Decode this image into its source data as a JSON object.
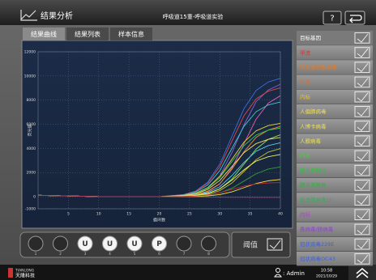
{
  "header": {
    "title": "结果分析",
    "experiment": "呼吸道15重-呼吸道实验",
    "help": "?"
  },
  "tabs": [
    "结果曲线",
    "结果列表",
    "样本信息"
  ],
  "chart_data": {
    "type": "line",
    "ylabel": "荧光值",
    "xlabel": "循环数",
    "x": [
      0,
      10,
      20,
      24,
      26,
      28,
      30,
      32,
      34,
      36,
      38,
      40
    ],
    "xlim": [
      0,
      40
    ],
    "xticks": [
      5,
      10,
      15,
      20,
      25,
      30,
      35,
      40
    ],
    "ylim": [
      -1000,
      12000
    ],
    "yticks": [
      -1000,
      0,
      2000,
      4000,
      6000,
      8000,
      10000,
      12000
    ],
    "grid": true,
    "series": [
      {
        "color": "#3a6fe0",
        "values": [
          120,
          10,
          0,
          180,
          470,
          1200,
          2700,
          5000,
          7300,
          8800,
          9500,
          9800
        ]
      },
      {
        "color": "#8a5fd8",
        "values": [
          120,
          10,
          0,
          106,
          288,
          730,
          1728,
          3648,
          5952,
          7872,
          8832,
          9312
        ]
      },
      {
        "color": "#e04848",
        "values": [
          120,
          10,
          0,
          166,
          432,
          1104,
          2484,
          4600,
          6716,
          8096,
          8740,
          9016
        ]
      },
      {
        "color": "#e060c0",
        "values": [
          120,
          10,
          0,
          62,
          158,
          414,
          1056,
          2376,
          4400,
          6424,
          7744,
          8360
        ]
      },
      {
        "color": "#40c8c8",
        "values": [
          120,
          10,
          0,
          144,
          376,
          960,
          2160,
          4000,
          5840,
          7040,
          7600,
          7840
        ]
      },
      {
        "color": "#e8d040",
        "values": [
          120,
          10,
          0,
          112,
          291,
          744,
          1674,
          3100,
          4526,
          5456,
          5890,
          6076
        ]
      },
      {
        "color": "#e89030",
        "values": [
          120,
          10,
          0,
          66,
          180,
          456,
          1080,
          2280,
          3720,
          4920,
          5520,
          5820
        ]
      },
      {
        "color": "#40c050",
        "values": [
          120,
          10,
          0,
          104,
          273,
          696,
          1566,
          2900,
          4234,
          5104,
          5510,
          5684
        ]
      },
      {
        "color": "#90e060",
        "values": [
          120,
          10,
          0,
          38,
          97,
          254,
          648,
          1458,
          2700,
          3942,
          4752,
          5130
        ]
      },
      {
        "color": "#f0e070",
        "values": [
          120,
          10,
          0,
          90,
          235,
          600,
          1350,
          2500,
          3650,
          4400,
          4750,
          4900
        ]
      },
      {
        "color": "#50d0f0",
        "values": [
          120,
          10,
          0,
          51,
          138,
          350,
          828,
          1748,
          2852,
          3772,
          4232,
          4462
        ]
      },
      {
        "color": "#c0c040",
        "values": [
          120,
          10,
          0,
          29,
          76,
          197,
          504,
          1134,
          2100,
          3066,
          3696,
          3990
        ]
      },
      {
        "color": "#f0f060",
        "values": [
          120,
          10,
          0,
          40,
          108,
          274,
          648,
          1368,
          2232,
          2952,
          3312,
          3492
        ]
      },
      {
        "color": "#30a040",
        "values": [
          120,
          10,
          0,
          18,
          47,
          122,
          312,
          702,
          1300,
          1898,
          2288,
          2470
        ]
      },
      {
        "color": "#ffe040",
        "values": [
          120,
          10,
          0,
          11,
          27,
          71,
          180,
          405,
          750,
          1095,
          1320,
          1425
        ]
      },
      {
        "color": "#c03030",
        "values": [
          120,
          10,
          0,
          22,
          56,
          144,
          324,
          600,
          876,
          1056,
          1140,
          1176
        ]
      },
      {
        "color": "#a04070",
        "values": [
          120,
          10,
          0,
          -20,
          -30,
          -40,
          -40,
          -50,
          -50,
          -60,
          -60,
          -60
        ]
      }
    ]
  },
  "targets": {
    "header": "目标基因",
    "items": [
      {
        "name": "甲流",
        "color": "#e03030"
      },
      {
        "name": "呼吸道合胞病毒",
        "color": "#e87a20"
      },
      {
        "name": "乙流",
        "color": "#e86a20"
      },
      {
        "name": "内标",
        "color": "#f0c030"
      },
      {
        "name": "人偏肺病毒",
        "color": "#f0e040"
      },
      {
        "name": "人博卡病毒",
        "color": "#f0e040"
      },
      {
        "name": "人腺病毒",
        "color": "#e8e050"
      },
      {
        "name": "内标",
        "color": "#40d040"
      },
      {
        "name": "肺炎支原体",
        "color": "#30c040"
      },
      {
        "name": "肺炎衣原体",
        "color": "#30b040"
      },
      {
        "name": "副流感病毒I/II",
        "color": "#30b050"
      },
      {
        "name": "内标",
        "color": "#b040d0"
      },
      {
        "name": "鼻病毒/肠病毒",
        "color": "#9040d0"
      },
      {
        "name": "冠状病毒229E",
        "color": "#4060e0"
      },
      {
        "name": "冠状病毒OC43",
        "color": "#4060e0"
      }
    ]
  },
  "wells": [
    {
      "number": 1
    },
    {
      "number": 2
    },
    {
      "number": 3,
      "label": "U"
    },
    {
      "number": 4,
      "label": "U"
    },
    {
      "number": 5,
      "label": "U"
    },
    {
      "number": 6,
      "label": "P"
    },
    {
      "number": 7
    },
    {
      "number": 8
    }
  ],
  "threshold": "阈值",
  "footer": {
    "brand": "TIANLONG",
    "brand_cn": "天隆科技",
    "user": ": Admin",
    "time": "10:58",
    "date": "2021/10/29"
  }
}
